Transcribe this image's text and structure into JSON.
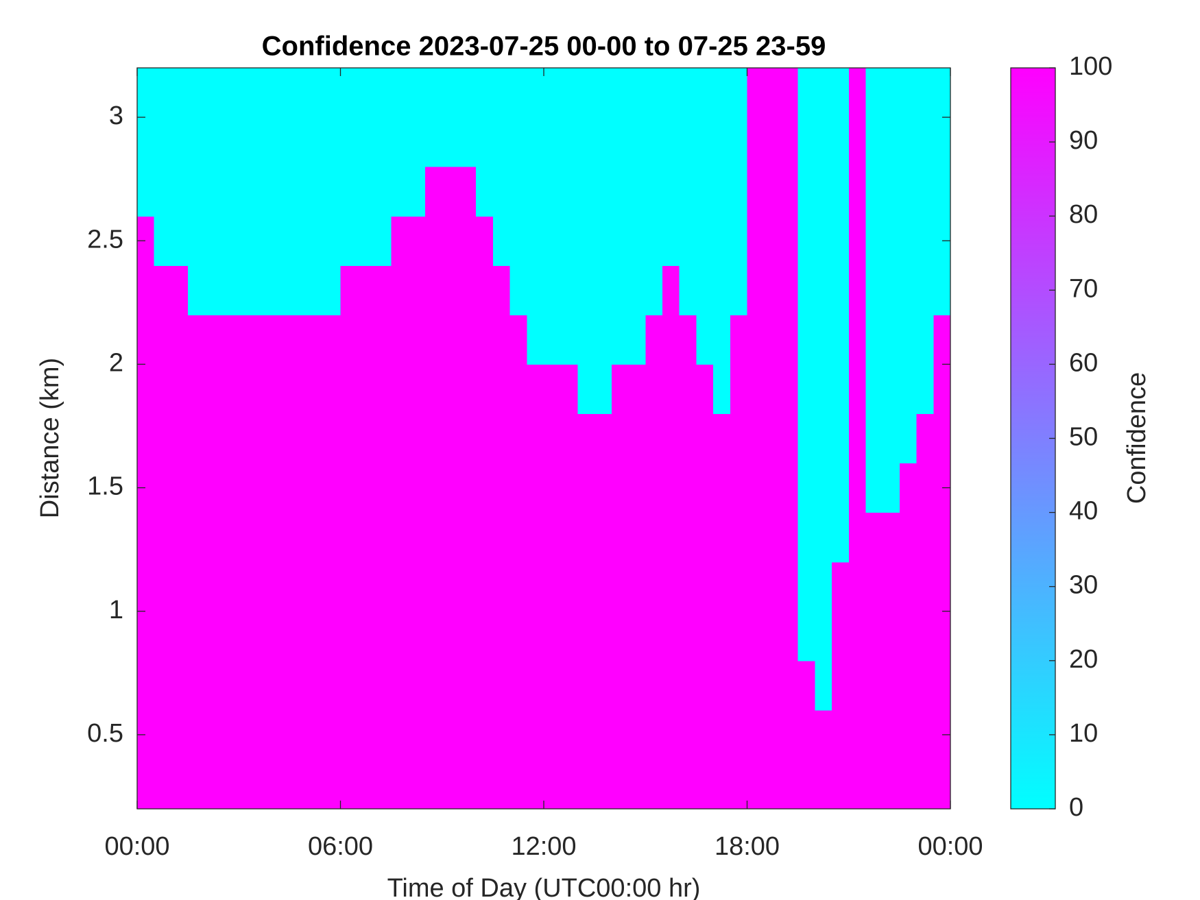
{
  "chart_data": {
    "type": "heatmap",
    "title": "Confidence 2023-07-25 00-00 to 07-25 23-59",
    "xlabel": "Time of Day (UTC00:00 hr)",
    "ylabel": "Distance (km)",
    "colorbar_label": "Confidence",
    "colormap": [
      "#00ffff",
      "#ff00ff"
    ],
    "clim": [
      0,
      100
    ],
    "cticks": [
      0,
      10,
      20,
      30,
      40,
      50,
      60,
      70,
      80,
      90,
      100
    ],
    "xlim": [
      0,
      24
    ],
    "xticks": [
      {
        "value": 0,
        "label": "00:00"
      },
      {
        "value": 6,
        "label": "06:00"
      },
      {
        "value": 12,
        "label": "12:00"
      },
      {
        "value": 18,
        "label": "18:00"
      },
      {
        "value": 24,
        "label": "00:00"
      }
    ],
    "ylim": [
      0.2,
      3.2
    ],
    "yticks": [
      0.5,
      1,
      1.5,
      2,
      2.5,
      3
    ],
    "x": [
      0.25,
      0.75,
      1.25,
      1.75,
      2.25,
      2.75,
      3.25,
      3.75,
      4.25,
      4.75,
      5.25,
      5.75,
      6.25,
      6.75,
      7.25,
      7.75,
      8.25,
      8.75,
      9.25,
      9.75,
      10.25,
      10.75,
      11.25,
      11.75,
      12.25,
      12.75,
      13.25,
      13.75,
      14.25,
      14.75,
      15.25,
      15.75,
      16.25,
      16.75,
      17.25,
      17.75,
      18.25,
      18.75,
      19.25,
      19.75,
      20.25,
      20.75,
      21.25,
      21.75,
      22.25,
      22.75,
      23.25,
      23.75
    ],
    "y": [
      0.3,
      0.5,
      0.7,
      0.9,
      1.1,
      1.3,
      1.5,
      1.7,
      1.9,
      2.1,
      2.3,
      2.5,
      2.7,
      2.9,
      3.1
    ],
    "z": [
      [
        100,
        100,
        100,
        100,
        100,
        100,
        100,
        100,
        100,
        100,
        100,
        100,
        100,
        100,
        100,
        100,
        100,
        100,
        100,
        100,
        100,
        100,
        100,
        100,
        100,
        100,
        100,
        100,
        100,
        100,
        100,
        100,
        100,
        100,
        100,
        100,
        100,
        100,
        100,
        100,
        100,
        100,
        100,
        100,
        100,
        100,
        100,
        100
      ],
      [
        100,
        100,
        100,
        100,
        100,
        100,
        100,
        100,
        100,
        100,
        100,
        100,
        100,
        100,
        100,
        100,
        100,
        100,
        100,
        100,
        100,
        100,
        100,
        100,
        100,
        100,
        100,
        100,
        100,
        100,
        100,
        100,
        100,
        100,
        100,
        100,
        100,
        100,
        100,
        100,
        100,
        100,
        100,
        100,
        100,
        100,
        100,
        100
      ],
      [
        100,
        100,
        100,
        100,
        100,
        100,
        100,
        100,
        100,
        100,
        100,
        100,
        100,
        100,
        100,
        100,
        100,
        100,
        100,
        100,
        100,
        100,
        100,
        100,
        100,
        100,
        100,
        100,
        100,
        100,
        100,
        100,
        100,
        100,
        100,
        100,
        100,
        100,
        100,
        100,
        0,
        100,
        100,
        100,
        100,
        100,
        100,
        100
      ],
      [
        100,
        100,
        100,
        100,
        100,
        100,
        100,
        100,
        100,
        100,
        100,
        100,
        100,
        100,
        100,
        100,
        100,
        100,
        100,
        100,
        100,
        100,
        100,
        100,
        100,
        100,
        100,
        100,
        100,
        100,
        100,
        100,
        100,
        100,
        100,
        100,
        100,
        100,
        100,
        0,
        0,
        100,
        100,
        100,
        100,
        100,
        100,
        100
      ],
      [
        100,
        100,
        100,
        100,
        100,
        100,
        100,
        100,
        100,
        100,
        100,
        100,
        100,
        100,
        100,
        100,
        100,
        100,
        100,
        100,
        100,
        100,
        100,
        100,
        100,
        100,
        100,
        100,
        100,
        100,
        100,
        100,
        100,
        100,
        100,
        100,
        100,
        100,
        100,
        0,
        0,
        100,
        100,
        100,
        100,
        100,
        100,
        100
      ],
      [
        100,
        100,
        100,
        100,
        100,
        100,
        100,
        100,
        100,
        100,
        100,
        100,
        100,
        100,
        100,
        100,
        100,
        100,
        100,
        100,
        100,
        100,
        100,
        100,
        100,
        100,
        100,
        100,
        100,
        100,
        100,
        100,
        100,
        100,
        100,
        100,
        100,
        100,
        100,
        0,
        0,
        0,
        100,
        100,
        100,
        100,
        100,
        100
      ],
      [
        100,
        100,
        100,
        100,
        100,
        100,
        100,
        100,
        100,
        100,
        100,
        100,
        100,
        100,
        100,
        100,
        100,
        100,
        100,
        100,
        100,
        100,
        100,
        100,
        100,
        100,
        100,
        100,
        100,
        100,
        100,
        100,
        100,
        100,
        100,
        100,
        100,
        100,
        100,
        0,
        0,
        0,
        100,
        0,
        0,
        100,
        100,
        100
      ],
      [
        100,
        100,
        100,
        100,
        100,
        100,
        100,
        100,
        100,
        100,
        100,
        100,
        100,
        100,
        100,
        100,
        100,
        100,
        100,
        100,
        100,
        100,
        100,
        100,
        100,
        100,
        100,
        100,
        100,
        100,
        100,
        100,
        100,
        100,
        100,
        100,
        100,
        100,
        100,
        0,
        0,
        0,
        100,
        0,
        0,
        0,
        100,
        100
      ],
      [
        100,
        100,
        100,
        100,
        100,
        100,
        100,
        100,
        100,
        100,
        100,
        100,
        100,
        100,
        100,
        100,
        100,
        100,
        100,
        100,
        100,
        100,
        100,
        100,
        100,
        100,
        0,
        0,
        100,
        100,
        100,
        100,
        100,
        100,
        0,
        100,
        100,
        100,
        100,
        0,
        0,
        0,
        100,
        0,
        0,
        0,
        0,
        100
      ],
      [
        100,
        100,
        100,
        100,
        100,
        100,
        100,
        100,
        100,
        100,
        100,
        100,
        100,
        100,
        100,
        100,
        100,
        100,
        100,
        100,
        100,
        100,
        100,
        0,
        0,
        0,
        0,
        0,
        0,
        0,
        100,
        100,
        100,
        0,
        0,
        100,
        100,
        100,
        100,
        0,
        0,
        0,
        100,
        0,
        0,
        0,
        0,
        100
      ],
      [
        100,
        100,
        100,
        0,
        0,
        0,
        0,
        0,
        0,
        0,
        0,
        0,
        100,
        100,
        100,
        100,
        100,
        100,
        100,
        100,
        100,
        100,
        0,
        0,
        0,
        0,
        0,
        0,
        0,
        0,
        0,
        100,
        0,
        0,
        0,
        0,
        100,
        100,
        100,
        0,
        0,
        0,
        100,
        0,
        0,
        0,
        0,
        0
      ],
      [
        100,
        0,
        0,
        0,
        0,
        0,
        0,
        0,
        0,
        0,
        0,
        0,
        0,
        0,
        0,
        100,
        100,
        100,
        100,
        100,
        100,
        0,
        0,
        0,
        0,
        0,
        0,
        0,
        0,
        0,
        0,
        0,
        0,
        0,
        0,
        0,
        100,
        100,
        100,
        0,
        0,
        0,
        100,
        0,
        0,
        0,
        0,
        0
      ],
      [
        0,
        0,
        0,
        0,
        0,
        0,
        0,
        0,
        0,
        0,
        0,
        0,
        0,
        0,
        0,
        0,
        0,
        100,
        100,
        100,
        0,
        0,
        0,
        0,
        0,
        0,
        0,
        0,
        0,
        0,
        0,
        0,
        0,
        0,
        0,
        0,
        100,
        100,
        100,
        0,
        0,
        0,
        100,
        0,
        0,
        0,
        0,
        0
      ],
      [
        0,
        0,
        0,
        0,
        0,
        0,
        0,
        0,
        0,
        0,
        0,
        0,
        0,
        0,
        0,
        0,
        0,
        0,
        0,
        0,
        0,
        0,
        0,
        0,
        0,
        0,
        0,
        0,
        0,
        0,
        0,
        0,
        0,
        0,
        0,
        0,
        100,
        100,
        100,
        0,
        0,
        0,
        100,
        0,
        0,
        0,
        0,
        0
      ],
      [
        0,
        0,
        0,
        0,
        0,
        0,
        0,
        0,
        0,
        0,
        0,
        0,
        0,
        0,
        0,
        0,
        0,
        0,
        0,
        0,
        0,
        0,
        0,
        0,
        0,
        0,
        0,
        0,
        0,
        0,
        0,
        0,
        0,
        0,
        0,
        0,
        100,
        100,
        100,
        0,
        0,
        0,
        100,
        0,
        0,
        0,
        0,
        0
      ]
    ]
  }
}
